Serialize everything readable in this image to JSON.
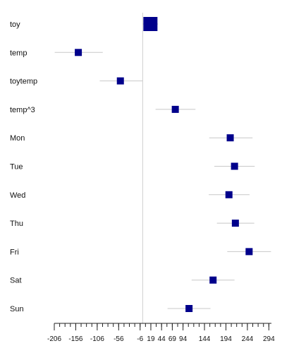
{
  "chart_data": {
    "type": "forest",
    "title": "",
    "xlabel": "",
    "ylabel": "",
    "xlim": [
      -206,
      300
    ],
    "reference_line": 0,
    "x_ticks": [
      -206,
      -156,
      -106,
      -56,
      -6,
      19,
      44,
      69,
      94,
      144,
      194,
      244,
      294
    ],
    "x_tick_labels": [
      "-206",
      "-156",
      "-106",
      "-56",
      "-6",
      "19",
      "44",
      "69",
      "94",
      "144",
      "194",
      "244",
      "294"
    ],
    "grid": false,
    "legend": "none",
    "rows": [
      {
        "label": "toy",
        "estimate": 18,
        "lower": 0,
        "upper": 36,
        "weight": 3
      },
      {
        "label": "temp",
        "estimate": -150,
        "lower": -205,
        "upper": -93,
        "weight": 1
      },
      {
        "label": "toytemp",
        "estimate": -52,
        "lower": -100,
        "upper": 0,
        "weight": 1
      },
      {
        "label": "temp^3",
        "estimate": 76,
        "lower": 30,
        "upper": 123,
        "weight": 1
      },
      {
        "label": "Mon",
        "estimate": 204,
        "lower": 155,
        "upper": 256,
        "weight": 1
      },
      {
        "label": "Tue",
        "estimate": 214,
        "lower": 167,
        "upper": 261,
        "weight": 1
      },
      {
        "label": "Wed",
        "estimate": 201,
        "lower": 154,
        "upper": 249,
        "weight": 1
      },
      {
        "label": "Thu",
        "estimate": 216,
        "lower": 173,
        "upper": 260,
        "weight": 1
      },
      {
        "label": "Fri",
        "estimate": 248,
        "lower": 197,
        "upper": 299,
        "weight": 1
      },
      {
        "label": "Sat",
        "estimate": 164,
        "lower": 114,
        "upper": 214,
        "weight": 1
      },
      {
        "label": "Sun",
        "estimate": 108,
        "lower": 58,
        "upper": 158,
        "weight": 1
      }
    ],
    "colors": {
      "marker": "#00008b",
      "ci_line": "#c8c8c8",
      "reference_line": "#cfcfcf",
      "axis": "#222222",
      "text": "#111111"
    }
  }
}
